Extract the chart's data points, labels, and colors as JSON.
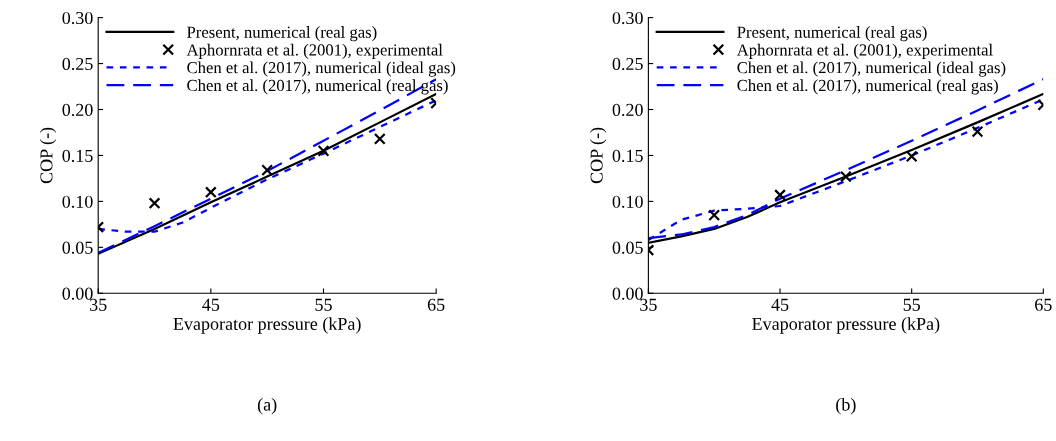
{
  "chart_data": [
    {
      "type": "line",
      "xlabel": "Evaporator pressure (kPa)",
      "ylabel": "COP (-)",
      "xlim": [
        35,
        65
      ],
      "ylim": [
        0,
        0.3
      ],
      "xticks": [
        35,
        45,
        55,
        65
      ],
      "yticks": [
        {
          "value": 0,
          "label": "0.00"
        },
        {
          "value": 0.05,
          "label": "0.05"
        },
        {
          "value": 0.1,
          "label": "0.10"
        },
        {
          "value": 0.15,
          "label": "0.15"
        },
        {
          "value": 0.2,
          "label": "0.20"
        },
        {
          "value": 0.25,
          "label": "0.25"
        },
        {
          "value": 0.3,
          "label": "0.30"
        }
      ],
      "grid": false,
      "legend": "top left",
      "annotations": [
        "(a)"
      ],
      "series": [
        {
          "name": "Present, numerical (real gas)",
          "type": "line",
          "line_style": "solid",
          "color": "#000000",
          "x": [
            35,
            40,
            45,
            50,
            55,
            60,
            65
          ],
          "values": [
            0.043,
            0.07,
            0.099,
            0.127,
            0.155,
            0.186,
            0.217
          ]
        },
        {
          "name": "Aphornrata et al. (2001), experimental",
          "type": "scatter",
          "marker": "cross",
          "color": "#000000",
          "x": [
            35,
            40,
            45,
            50,
            55,
            60,
            65
          ],
          "values": [
            0.072,
            0.098,
            0.11,
            0.134,
            0.155,
            0.168,
            0.207
          ]
        },
        {
          "name": "Chen et al. (2017), numerical (ideal gas)",
          "type": "line",
          "line_style": "dotted",
          "color": "#0000ff",
          "x": [
            35,
            37.5,
            40,
            42.5,
            45,
            50,
            55,
            60,
            65
          ],
          "values": [
            0.07,
            0.067,
            0.067,
            0.077,
            0.093,
            0.124,
            0.152,
            0.181,
            0.21
          ]
        },
        {
          "name": "Chen et al. (2017), numerical (real gas)",
          "type": "line",
          "line_style": "dashed",
          "color": "#0000ff",
          "x": [
            35,
            40,
            45,
            50,
            55,
            60,
            65
          ],
          "values": [
            0.044,
            0.073,
            0.103,
            0.133,
            0.166,
            0.199,
            0.233
          ]
        }
      ]
    },
    {
      "type": "line",
      "xlabel": "Evaporator pressure (kPa)",
      "ylabel": "COP (-)",
      "xlim": [
        35,
        65
      ],
      "ylim": [
        0,
        0.3
      ],
      "xticks": [
        35,
        45,
        55,
        65
      ],
      "yticks": [
        {
          "value": 0,
          "label": "0.00"
        },
        {
          "value": 0.05,
          "label": "0.05"
        },
        {
          "value": 0.1,
          "label": "0.10"
        },
        {
          "value": 0.15,
          "label": "0.15"
        },
        {
          "value": 0.2,
          "label": "0.20"
        },
        {
          "value": 0.25,
          "label": "0.25"
        },
        {
          "value": 0.3,
          "label": "0.30"
        }
      ],
      "grid": false,
      "legend": "top left",
      "annotations": [
        "(b)"
      ],
      "series": [
        {
          "name": "Present, numerical (real gas)",
          "type": "line",
          "line_style": "solid",
          "color": "#000000",
          "x": [
            35,
            37.5,
            40,
            42.5,
            45,
            50,
            55,
            60,
            65
          ],
          "values": [
            0.055,
            0.062,
            0.07,
            0.083,
            0.099,
            0.127,
            0.156,
            0.186,
            0.217
          ]
        },
        {
          "name": "Aphornrata et al. (2001), experimental",
          "type": "scatter",
          "marker": "cross",
          "color": "#000000",
          "x": [
            35,
            40,
            45,
            50,
            55,
            60,
            65
          ],
          "values": [
            0.047,
            0.085,
            0.107,
            0.127,
            0.149,
            0.176,
            0.205
          ]
        },
        {
          "name": "Chen et al. (2017), numerical (ideal gas)",
          "type": "line",
          "line_style": "dotted",
          "color": "#0000ff",
          "x": [
            35,
            37.5,
            40,
            42.5,
            45,
            50,
            55,
            60,
            65
          ],
          "values": [
            0.058,
            0.08,
            0.09,
            0.092,
            0.095,
            0.122,
            0.15,
            0.18,
            0.211
          ]
        },
        {
          "name": "Chen et al. (2017), numerical (real gas)",
          "type": "line",
          "line_style": "dashed",
          "color": "#0000ff",
          "x": [
            35,
            37.5,
            40,
            42.5,
            45,
            50,
            55,
            60,
            65
          ],
          "values": [
            0.06,
            0.064,
            0.072,
            0.085,
            0.103,
            0.134,
            0.166,
            0.199,
            0.233
          ]
        }
      ]
    }
  ]
}
